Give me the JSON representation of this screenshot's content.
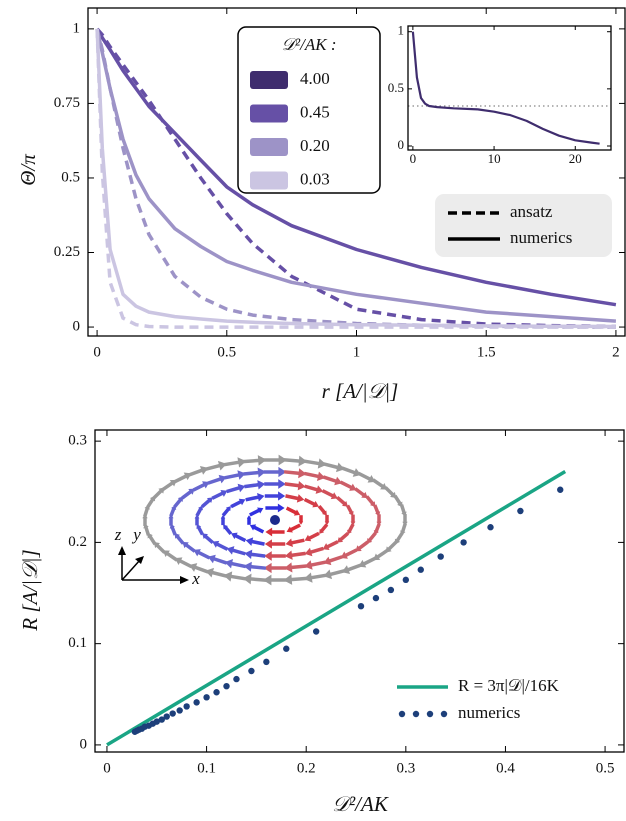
{
  "chart_data": [
    {
      "type": "line",
      "xlabel": "r [A/|𝒟|]",
      "ylabel": "Θ/π",
      "x": [
        0,
        0.02,
        0.05,
        0.1,
        0.15,
        0.2,
        0.3,
        0.4,
        0.5,
        0.6,
        0.75,
        1.0,
        1.25,
        1.5,
        1.75,
        2.0
      ],
      "series": [
        {
          "color": "#6650a6",
          "style": "solid",
          "values": [
            1,
            0.97,
            0.93,
            0.86,
            0.8,
            0.74,
            0.65,
            0.56,
            0.47,
            0.41,
            0.34,
            0.26,
            0.2,
            0.15,
            0.11,
            0.075
          ]
        },
        {
          "color": "#6650a6",
          "style": "dashed",
          "values": [
            1,
            0.98,
            0.94,
            0.88,
            0.82,
            0.76,
            0.63,
            0.5,
            0.38,
            0.28,
            0.17,
            0.06,
            0.025,
            0.01,
            0.005,
            0.002
          ]
        },
        {
          "color": "#9d93c7",
          "style": "solid",
          "values": [
            1,
            0.92,
            0.8,
            0.63,
            0.51,
            0.43,
            0.33,
            0.27,
            0.22,
            0.19,
            0.15,
            0.11,
            0.08,
            0.05,
            0.035,
            0.02
          ]
        },
        {
          "color": "#9d93c7",
          "style": "dashed",
          "values": [
            1,
            0.93,
            0.8,
            0.6,
            0.43,
            0.31,
            0.17,
            0.1,
            0.06,
            0.04,
            0.025,
            0.012,
            0.006,
            0.003,
            0.001,
            0
          ]
        },
        {
          "color": "#cbc5e2",
          "style": "solid",
          "values": [
            1,
            0.6,
            0.26,
            0.11,
            0.07,
            0.05,
            0.035,
            0.027,
            0.02,
            0.016,
            0.012,
            0.008,
            0.006,
            0.004,
            0.003,
            0.002
          ]
        },
        {
          "color": "#cbc5e2",
          "style": "dashed",
          "values": [
            1,
            0.52,
            0.15,
            0.03,
            0.008,
            0.002,
            0,
            0,
            0,
            0,
            0,
            0,
            0,
            0,
            0,
            0
          ]
        }
      ],
      "xlim": [
        -0.035,
        2.035
      ],
      "ylim": [
        -0.03,
        1.07
      ],
      "xticks": [
        0,
        0.5,
        1,
        1.5,
        2
      ],
      "yticks": [
        0,
        0.25,
        0.5,
        0.75,
        1
      ],
      "color_legend": {
        "title": "𝒟²/AK :",
        "entries": [
          {
            "label": "4.00",
            "color": "#3f2d6e"
          },
          {
            "label": "0.45",
            "color": "#6650a6"
          },
          {
            "label": "0.20",
            "color": "#9d93c7"
          },
          {
            "label": "0.03",
            "color": "#cbc5e2"
          }
        ]
      },
      "style_legend": [
        {
          "label": "ansatz",
          "style": "dashed"
        },
        {
          "label": "numerics",
          "style": "solid"
        }
      ]
    },
    {
      "type": "line",
      "x": [
        0,
        0.5,
        1,
        1.5,
        2,
        3,
        5,
        8,
        10,
        12,
        14,
        16,
        18,
        20,
        22,
        23
      ],
      "series": [
        {
          "color": "#3f2d6e",
          "style": "solid",
          "values": [
            1,
            0.6,
            0.42,
            0.37,
            0.35,
            0.34,
            0.33,
            0.32,
            0.3,
            0.27,
            0.22,
            0.15,
            0.09,
            0.05,
            0.03,
            0.02
          ]
        }
      ],
      "reference": 0.35,
      "reference_color": "#888888",
      "xlim": [
        -0.6,
        24.4
      ],
      "ylim": [
        -0.035,
        1.05
      ],
      "xticks": [
        0,
        10,
        20
      ],
      "yticks": [
        0,
        0.5,
        1
      ]
    },
    {
      "type": "scatter",
      "xlabel": "𝒟²/AK",
      "ylabel": "R [A/|𝒟|]",
      "series": [
        {
          "name": "R = 3π|𝒟|/16K",
          "color": "#1aa585",
          "style": "solid",
          "x": [
            0,
            0.46
          ],
          "values": [
            0,
            0.27
          ]
        },
        {
          "name": "numerics",
          "color": "#1d3f7a",
          "style": "dots",
          "x": [
            0.028,
            0.03,
            0.032,
            0.035,
            0.038,
            0.042,
            0.046,
            0.05,
            0.055,
            0.06,
            0.066,
            0.073,
            0.08,
            0.09,
            0.1,
            0.11,
            0.12,
            0.13,
            0.145,
            0.16,
            0.18,
            0.21,
            0.255,
            0.27,
            0.285,
            0.3,
            0.315,
            0.335,
            0.358,
            0.385,
            0.415,
            0.455
          ],
          "values": [
            0.013,
            0.014,
            0.015,
            0.016,
            0.018,
            0.019,
            0.021,
            0.023,
            0.025,
            0.028,
            0.031,
            0.034,
            0.038,
            0.042,
            0.047,
            0.052,
            0.058,
            0.065,
            0.073,
            0.082,
            0.095,
            0.112,
            0.137,
            0.145,
            0.153,
            0.163,
            0.173,
            0.186,
            0.2,
            0.215,
            0.231,
            0.252
          ]
        }
      ],
      "xlim": [
        -0.012,
        0.519
      ],
      "ylim": [
        -0.007,
        0.311
      ],
      "xticks": [
        0,
        0.1,
        0.2,
        0.3,
        0.4,
        0.5
      ],
      "yticks": [
        0,
        0.1,
        0.2,
        0.3
      ],
      "legend": "lower right",
      "illustration_labels": [
        "z",
        "y",
        "x"
      ]
    }
  ]
}
